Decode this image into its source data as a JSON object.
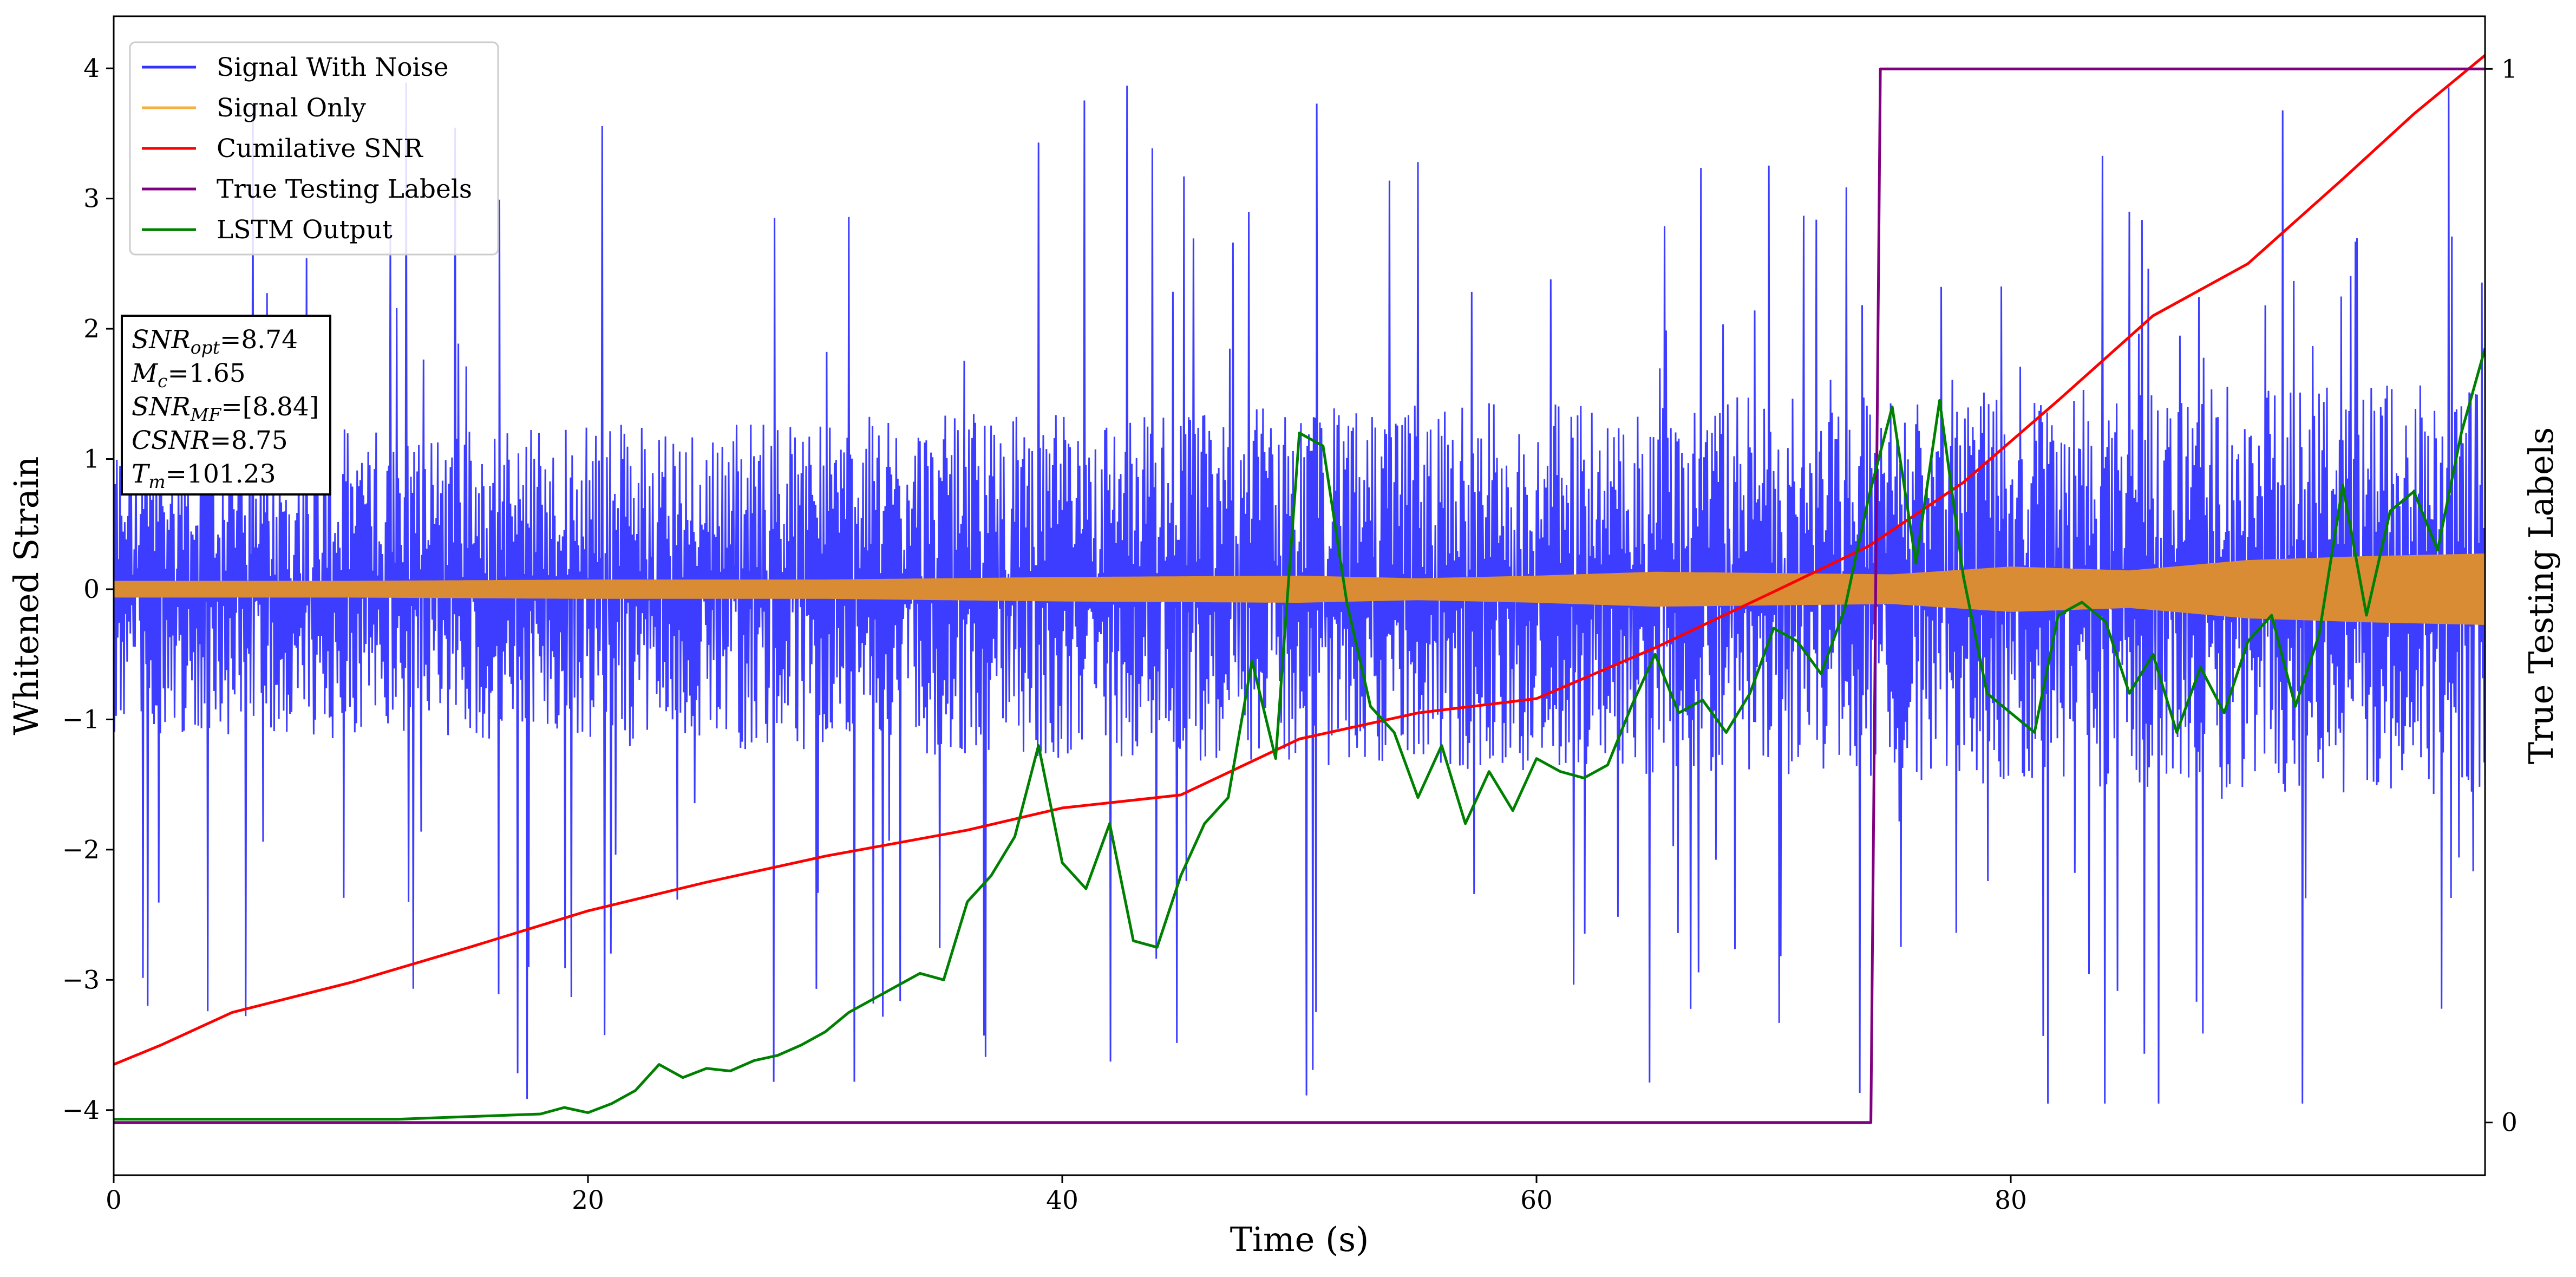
{
  "chart_data": {
    "type": "line",
    "xlabel": "Time (s)",
    "ylabel": "Whitened Strain",
    "y2label": "True Testing Labels",
    "xlim": [
      0,
      100
    ],
    "ylim": [
      -4.5,
      4.4
    ],
    "y2lim": [
      -0.05,
      1.05
    ],
    "xticks": [
      0,
      20,
      40,
      60,
      80
    ],
    "yticks": [
      -4,
      -3,
      -2,
      -1,
      0,
      1,
      2,
      3,
      4
    ],
    "y2ticks": [
      0,
      1
    ],
    "grid": false,
    "legend_position": "upper-left",
    "legend": [
      {
        "label": "Signal With Noise",
        "color": "#3333ff"
      },
      {
        "label": "Signal Only",
        "color": "#f5b041"
      },
      {
        "label": "Cumilative SNR",
        "color": "#ff0000"
      },
      {
        "label": "True Testing Labels",
        "color": "#800080"
      },
      {
        "label": "LSTM Output",
        "color": "#008000"
      }
    ],
    "info_box": [
      {
        "sym": "SNR",
        "sub": "opt",
        "val": "=8.74"
      },
      {
        "sym": "M",
        "sub": "c",
        "val": "=1.65"
      },
      {
        "sym": "SNR",
        "sub": "MF",
        "val": "=[8.84]"
      },
      {
        "sym": "CSNR",
        "sub": "",
        "val": "=8.75"
      },
      {
        "sym": "T",
        "sub": "m",
        "val": "=101.23"
      }
    ],
    "series": [
      {
        "name": "Signal With Noise",
        "axis": "left",
        "color": "#3333ff",
        "description_kind": "noise",
        "band_low": [
          -1.1,
          -1.6
        ],
        "band_high": [
          1.2,
          1.6
        ],
        "peak_max": 4.1,
        "peak_min": -3.95
      },
      {
        "name": "Signal Only",
        "axis": "left",
        "color": "#d98c33",
        "description_kind": "envelope",
        "x": [
          0,
          10,
          20,
          30,
          40,
          50,
          55,
          60,
          65,
          70,
          75,
          80,
          85,
          90,
          95,
          100
        ],
        "amplitude": [
          0.06,
          0.06,
          0.07,
          0.07,
          0.09,
          0.1,
          0.08,
          0.1,
          0.13,
          0.12,
          0.11,
          0.17,
          0.14,
          0.22,
          0.25,
          0.27
        ]
      },
      {
        "name": "Cumilative SNR",
        "axis": "left",
        "color": "#ff0000",
        "x": [
          0,
          2,
          5,
          10,
          15,
          20,
          25,
          30,
          33,
          36,
          40,
          45,
          50,
          55,
          60,
          65,
          70,
          74,
          78,
          82,
          86,
          90,
          94,
          97,
          100
        ],
        "y": [
          -3.65,
          -3.5,
          -3.25,
          -3.02,
          -2.75,
          -2.47,
          -2.25,
          -2.05,
          -1.95,
          -1.85,
          -1.68,
          -1.58,
          -1.15,
          -0.95,
          -0.84,
          -0.45,
          -0.02,
          0.33,
          0.82,
          1.45,
          2.1,
          2.5,
          3.15,
          3.65,
          4.1
        ]
      },
      {
        "name": "True Testing Labels",
        "axis": "right",
        "color": "#800080",
        "x": [
          0,
          74.1,
          74.5,
          100
        ],
        "y": [
          0,
          0,
          1,
          1
        ]
      },
      {
        "name": "LSTM Output",
        "axis": "left",
        "color": "#008000",
        "x": [
          0,
          12,
          15,
          18,
          19,
          20,
          21,
          22,
          23,
          24,
          25,
          26,
          27,
          28,
          29,
          30,
          31,
          32,
          33,
          34,
          35,
          36,
          37,
          38,
          39,
          40,
          41,
          42,
          43,
          44,
          45,
          46,
          47,
          48,
          49,
          50,
          51,
          52,
          53,
          54,
          55,
          56,
          57,
          58,
          59,
          60,
          61,
          62,
          63,
          64,
          65,
          66,
          67,
          68,
          69,
          70,
          71,
          72,
          73,
          74,
          75,
          76,
          77,
          78,
          79,
          80,
          81,
          82,
          83,
          84,
          85,
          86,
          87,
          88,
          89,
          90,
          91,
          92,
          93,
          94,
          95,
          96,
          97,
          98,
          99,
          100
        ],
        "y": [
          -4.07,
          -4.07,
          -4.05,
          -4.03,
          -3.98,
          -4.02,
          -3.95,
          -3.85,
          -3.65,
          -3.75,
          -3.68,
          -3.7,
          -3.62,
          -3.58,
          -3.5,
          -3.4,
          -3.25,
          -3.15,
          -3.05,
          -2.95,
          -3.0,
          -2.4,
          -2.2,
          -1.9,
          -1.2,
          -2.1,
          -2.3,
          -1.8,
          -2.7,
          -2.75,
          -2.2,
          -1.8,
          -1.6,
          -0.55,
          -1.3,
          1.2,
          1.1,
          -0.1,
          -0.9,
          -1.1,
          -1.6,
          -1.2,
          -1.8,
          -1.4,
          -1.7,
          -1.3,
          -1.4,
          -1.45,
          -1.35,
          -0.9,
          -0.5,
          -0.95,
          -0.85,
          -1.1,
          -0.8,
          -0.3,
          -0.4,
          -0.65,
          -0.15,
          0.7,
          1.4,
          0.2,
          1.45,
          0.1,
          -0.8,
          -0.95,
          -1.1,
          -0.2,
          -0.1,
          -0.25,
          -0.8,
          -0.5,
          -1.1,
          -0.6,
          -0.95,
          -0.4,
          -0.2,
          -0.9,
          -0.35,
          0.8,
          -0.2,
          0.6,
          0.75,
          0.3,
          1.2,
          1.85
        ]
      }
    ]
  }
}
